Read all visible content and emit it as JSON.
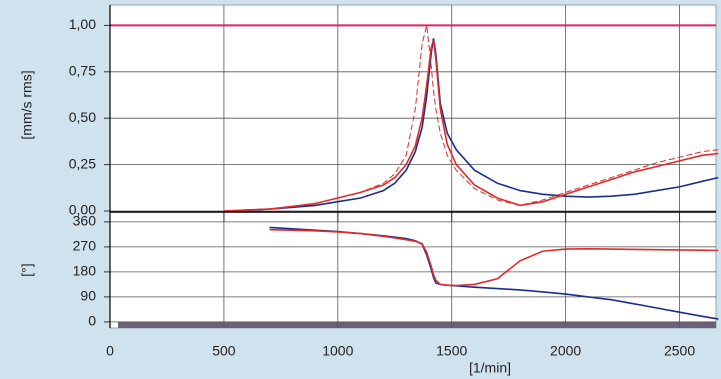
{
  "chart_data": [
    {
      "type": "line",
      "ylabel": "[mm/s rms]",
      "x": [
        500,
        600,
        700,
        800,
        900,
        1000,
        1100,
        1200,
        1250,
        1300,
        1340,
        1370,
        1390,
        1410,
        1420,
        1430,
        1450,
        1480,
        1520,
        1600,
        1700,
        1800,
        1900,
        2000,
        2100,
        2200,
        2300,
        2400,
        2500,
        2600,
        2670
      ],
      "xlim": [
        0,
        2660
      ],
      "xticks": [
        0,
        500,
        1000,
        1500,
        2000,
        2500
      ],
      "ylim": [
        0,
        1.11
      ],
      "yticks": [
        {
          "value": 0,
          "label": "0,00"
        },
        {
          "value": 0.25,
          "label": "0,25"
        },
        {
          "value": 0.5,
          "label": "0,50"
        },
        {
          "value": 0.75,
          "label": "0,75"
        },
        {
          "value": 1,
          "label": "1,00"
        }
      ],
      "reference_line": {
        "value": 1,
        "color": "#e0206a"
      },
      "grid": true,
      "series": [
        {
          "color": "#1a2f8c",
          "dashed": false,
          "values": [
            0,
            0.005,
            0.01,
            0.02,
            0.03,
            0.05,
            0.07,
            0.11,
            0.15,
            0.22,
            0.32,
            0.45,
            0.62,
            0.85,
            0.93,
            0.85,
            0.58,
            0.42,
            0.33,
            0.22,
            0.15,
            0.11,
            0.09,
            0.08,
            0.075,
            0.08,
            0.09,
            0.11,
            0.13,
            0.16,
            0.18
          ]
        },
        {
          "color": "#e02a2a",
          "dashed": false,
          "values": [
            0,
            0.005,
            0.01,
            0.025,
            0.04,
            0.07,
            0.1,
            0.14,
            0.18,
            0.25,
            0.35,
            0.5,
            0.68,
            0.88,
            0.92,
            0.82,
            0.55,
            0.36,
            0.25,
            0.14,
            0.07,
            0.03,
            0.05,
            0.09,
            0.13,
            0.17,
            0.21,
            0.24,
            0.27,
            0.3,
            0.31
          ]
        },
        {
          "color": "#e02a2a",
          "dashed": true,
          "values": [
            0,
            0.005,
            0.01,
            0.025,
            0.04,
            0.07,
            0.1,
            0.15,
            0.2,
            0.3,
            0.55,
            0.9,
            1.0,
            0.78,
            0.65,
            0.55,
            0.42,
            0.3,
            0.22,
            0.12,
            0.06,
            0.03,
            0.06,
            0.1,
            0.14,
            0.18,
            0.22,
            0.26,
            0.29,
            0.32,
            0.33
          ]
        }
      ]
    },
    {
      "type": "line",
      "ylabel": "[°]",
      "xlabel": "[1/min]",
      "x": [
        500,
        600,
        700,
        800,
        900,
        1000,
        1100,
        1200,
        1250,
        1300,
        1340,
        1370,
        1390,
        1410,
        1420,
        1430,
        1450,
        1480,
        1520,
        1600,
        1700,
        1800,
        1900,
        2000,
        2100,
        2200,
        2300,
        2400,
        2500,
        2600,
        2670
      ],
      "xlim": [
        0,
        2660
      ],
      "xticks": [
        0,
        500,
        1000,
        1500,
        2000,
        2500
      ],
      "ylim": [
        -22,
        392
      ],
      "yticks": [
        0,
        90,
        180,
        270,
        360
      ],
      "grid": true,
      "series": [
        {
          "color": "#1a2f8c",
          "dashed": false,
          "values": [
            null,
            null,
            340,
            335,
            330,
            325,
            318,
            310,
            305,
            300,
            292,
            280,
            240,
            190,
            160,
            140,
            135,
            132,
            130,
            125,
            120,
            115,
            108,
            100,
            90,
            80,
            65,
            50,
            35,
            20,
            10
          ]
        },
        {
          "color": "#e02a2a",
          "dashed": false,
          "values": [
            null,
            null,
            332,
            330,
            328,
            324,
            318,
            308,
            302,
            296,
            290,
            282,
            250,
            200,
            170,
            150,
            135,
            132,
            131,
            135,
            155,
            220,
            255,
            262,
            263,
            262,
            261,
            260,
            259,
            258,
            257
          ]
        }
      ]
    }
  ]
}
